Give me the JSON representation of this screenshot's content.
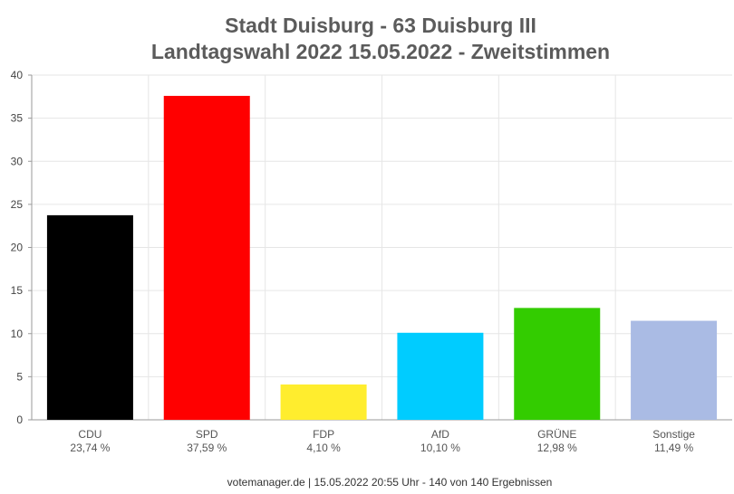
{
  "chart_data": {
    "type": "bar",
    "title": "Stadt Duisburg - 63 Duisburg III",
    "subtitle": "Landtagswahl 2022 15.05.2022  - Zweitstimmen",
    "categories": [
      "CDU",
      "SPD",
      "FDP",
      "AfD",
      "GRÜNE",
      "Sonstige"
    ],
    "value_labels": [
      "23,74 %",
      "37,59 %",
      "4,10 %",
      "10,10 %",
      "12,98 %",
      "11,49 %"
    ],
    "values": [
      23.74,
      37.59,
      4.1,
      10.1,
      12.98,
      11.49
    ],
    "colors": [
      "#000000",
      "#ff0000",
      "#ffed2e",
      "#00ccff",
      "#33cc00",
      "#aabbe4"
    ],
    "ylim": [
      0,
      40
    ],
    "yticks": [
      "0",
      "5",
      "10",
      "15",
      "20",
      "25",
      "30",
      "35",
      "40"
    ],
    "grid": true
  },
  "footer": "votemanager.de | 15.05.2022 20:55 Uhr - 140 von 140 Ergebnissen"
}
